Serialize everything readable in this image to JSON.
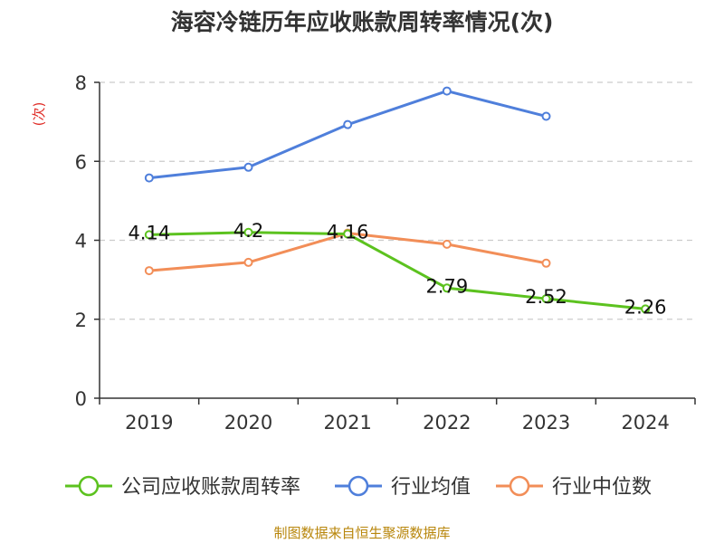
{
  "chart_data": {
    "type": "line",
    "title": "海容冷链历年应收账款周转率情况(次)",
    "ylabel": "(次)",
    "xlabel": "",
    "categories": [
      "2019",
      "2020",
      "2021",
      "2022",
      "2023",
      "2024"
    ],
    "ylim": [
      0,
      8
    ],
    "yticks": [
      0,
      2,
      4,
      6,
      8
    ],
    "grid": true,
    "legend_position": "bottom",
    "series": [
      {
        "name": "公司应收账款周转率",
        "color": "#5cc21f",
        "values": [
          4.14,
          4.2,
          4.16,
          2.79,
          2.52,
          2.26
        ],
        "labels": [
          "4.14",
          "4.2",
          "4.16",
          "2.79",
          "2.52",
          "2.26"
        ]
      },
      {
        "name": "行业均值",
        "color": "#4f7fdb",
        "values": [
          5.58,
          5.85,
          6.93,
          7.78,
          7.14,
          null
        ]
      },
      {
        "name": "行业中位数",
        "color": "#f28e58",
        "values": [
          3.23,
          3.44,
          4.18,
          3.9,
          3.42,
          null
        ]
      }
    ],
    "source": "制图数据来自恒生聚源数据库"
  },
  "colors": {
    "ylabel": "#e0302a",
    "source": "#b8860b",
    "grid": "#cccccc",
    "axis": "#333333"
  }
}
